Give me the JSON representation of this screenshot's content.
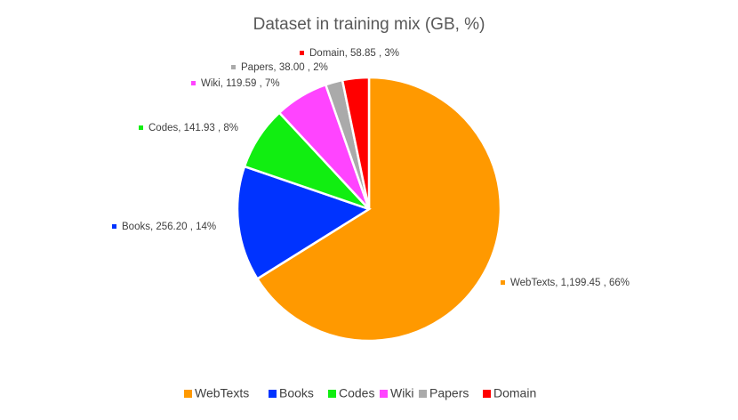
{
  "chart_data": {
    "type": "pie",
    "title": "Dataset in training mix (GB, %)",
    "categories": [
      "WebTexts",
      "Books",
      "Codes",
      "Wiki",
      "Papers",
      "Domain"
    ],
    "values": [
      1199.45,
      256.2,
      141.93,
      119.59,
      38.0,
      58.85
    ],
    "value_labels": [
      "WebTexts, 1,199.45 , 66%",
      "Books, 256.20 , 14%",
      "Codes, 141.93 , 8%",
      "Wiki, 119.59 , 7%",
      "Papers, 38.00 , 2%",
      "Domain, 58.85 , 3%"
    ],
    "colors": [
      "#ff9900",
      "#0033ff",
      "#11ee11",
      "#ff44ff",
      "#aaaaaa",
      "#ff0000"
    ],
    "legend": "bottom"
  }
}
